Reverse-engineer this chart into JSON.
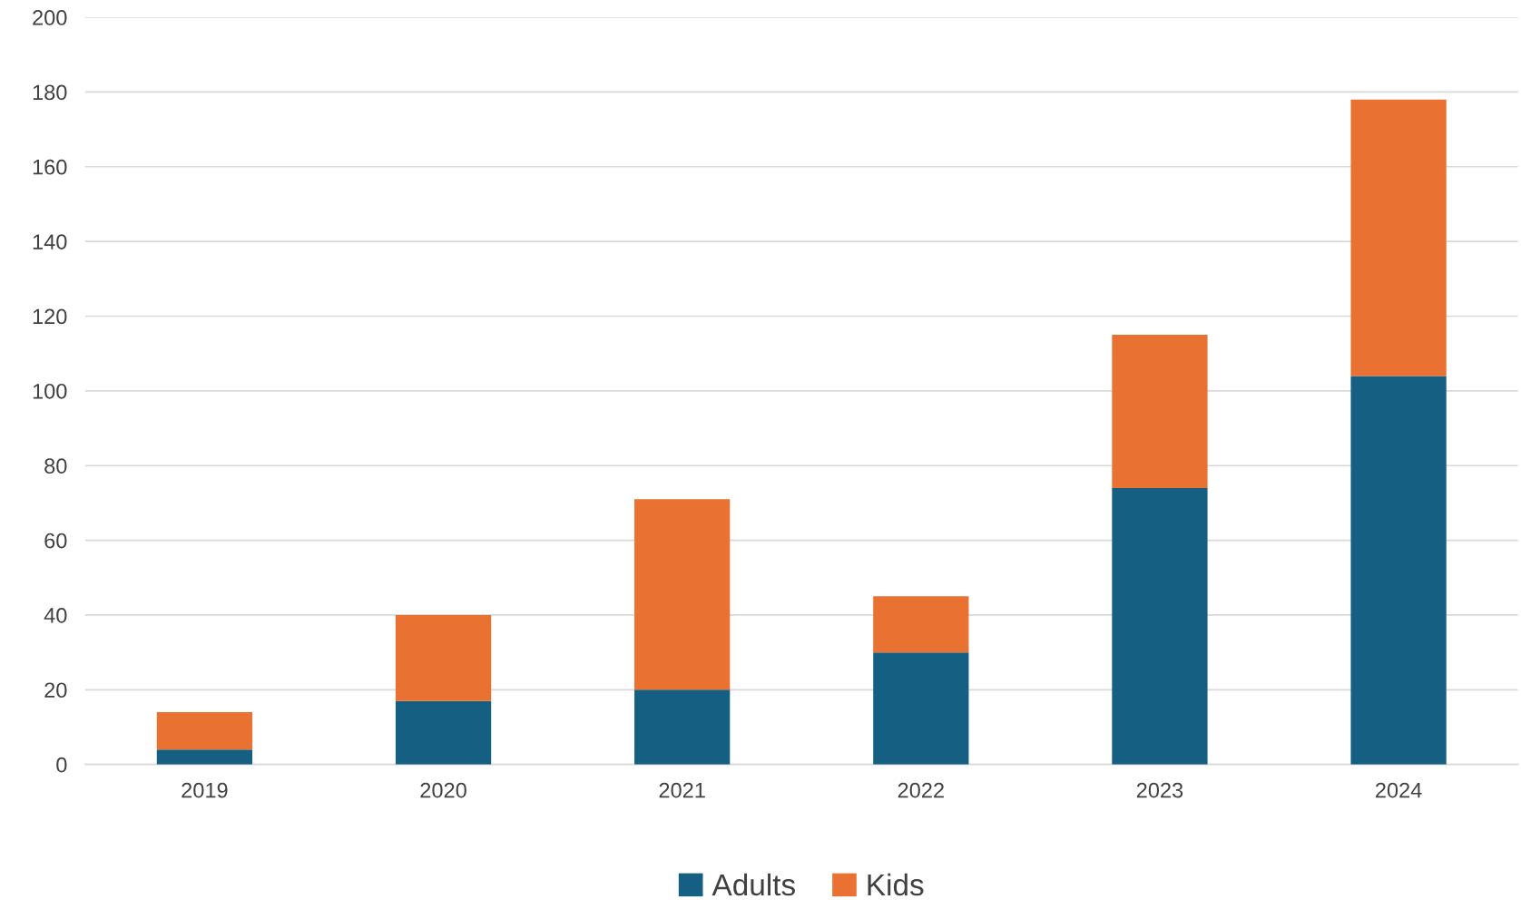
{
  "chart_data": {
    "type": "bar",
    "stacked": true,
    "categories": [
      "2019",
      "2020",
      "2021",
      "2022",
      "2023",
      "2024"
    ],
    "series": [
      {
        "name": "Adults",
        "color": "#156082",
        "values": [
          4,
          17,
          20,
          30,
          74,
          104
        ]
      },
      {
        "name": "Kids",
        "color": "#e97132",
        "values": [
          10,
          23,
          51,
          15,
          41,
          74
        ]
      }
    ],
    "ylim": [
      0,
      200
    ],
    "yticks": [
      0,
      20,
      40,
      60,
      80,
      100,
      120,
      140,
      160,
      180,
      200
    ],
    "grid": "y",
    "legend": "bottom"
  }
}
